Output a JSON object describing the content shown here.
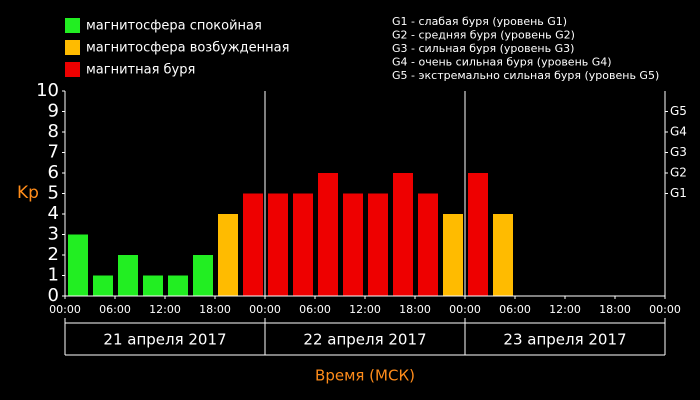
{
  "chart_data": {
    "type": "bar",
    "legend": [
      {
        "name": "магнитосфера спокойная",
        "color": "#22ee22"
      },
      {
        "name": "магнитосфера возбужденная",
        "color": "#ffbb00"
      },
      {
        "name": "магнитная буря",
        "color": "#ee0000"
      }
    ],
    "notes": [
      "G1 - слабая буря (уровень G1)",
      "G2 - средняя буря (уровень G2)",
      "G3 - сильная буря (уровень G3)",
      "G4 - очень сильная буря (уровень G4)",
      "G5 - экстремально сильная буря (уровень G5)"
    ],
    "ylabel": "Kp",
    "xlabel": "Время (МСК)",
    "days": [
      "21 апреля 2017",
      "22 апреля 2017",
      "23 апреля 2017"
    ],
    "xticks": [
      "00:00",
      "06:00",
      "12:00",
      "18:00",
      "00:00",
      "06:00",
      "12:00",
      "18:00",
      "00:00",
      "06:00",
      "12:00",
      "18:00",
      "00:00"
    ],
    "values": [
      3,
      1,
      2,
      1,
      1,
      2,
      4,
      5,
      5,
      5,
      6,
      5,
      5,
      6,
      5,
      4,
      6,
      4,
      null,
      null,
      null,
      null,
      null,
      null
    ],
    "bar_colors": [
      "#22ee22",
      "#22ee22",
      "#22ee22",
      "#22ee22",
      "#22ee22",
      "#22ee22",
      "#ffbb00",
      "#ee0000",
      "#ee0000",
      "#ee0000",
      "#ee0000",
      "#ee0000",
      "#ee0000",
      "#ee0000",
      "#ee0000",
      "#ffbb00",
      "#ee0000",
      "#ffbb00",
      null,
      null,
      null,
      null,
      null,
      null
    ],
    "ylim": [
      0,
      10
    ],
    "yticks": [
      0,
      1,
      2,
      3,
      4,
      5,
      6,
      7,
      8,
      9,
      10
    ],
    "y2lim": [
      0,
      10
    ],
    "y2ticks": [
      {
        "value": 5,
        "label": "G1"
      },
      {
        "value": 6,
        "label": "G2"
      },
      {
        "value": 7,
        "label": "G3"
      },
      {
        "value": 8,
        "label": "G4"
      },
      {
        "value": 9,
        "label": "G5"
      }
    ]
  }
}
